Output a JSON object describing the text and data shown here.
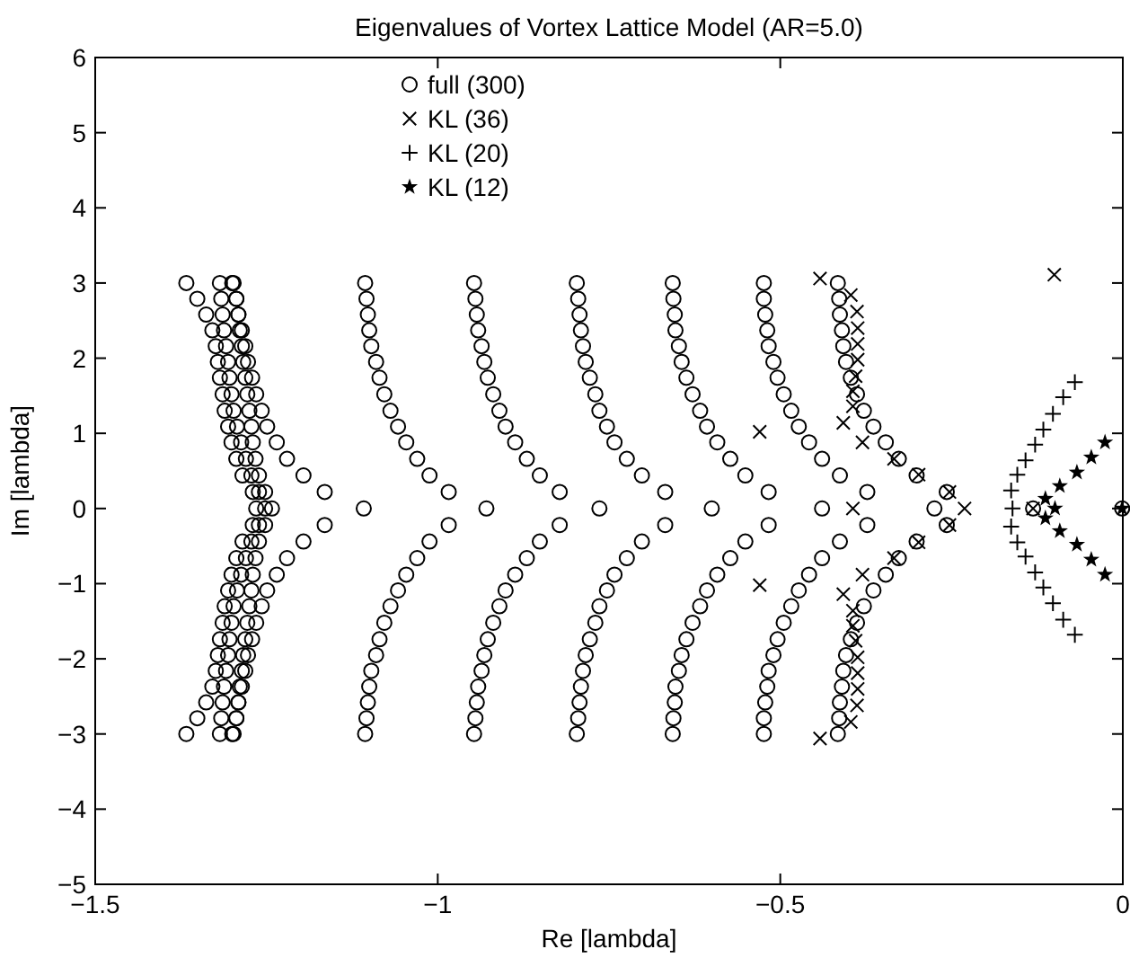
{
  "chart_data": {
    "type": "scatter",
    "title": "Eigenvalues of Vortex Lattice Model (AR=5.0)",
    "xlabel": "Re [lambda]",
    "ylabel": "Im [lambda]",
    "xlim": [
      -1.5,
      0
    ],
    "xticks": [
      -1.5,
      -1,
      -0.5,
      0
    ],
    "ylim": [
      -5,
      6
    ],
    "yticks": [
      -5,
      -4,
      -3,
      -2,
      -1,
      0,
      1,
      2,
      3,
      4,
      5,
      6
    ],
    "grid": false,
    "legend": "top",
    "series": [
      {
        "name": "full (300)",
        "color": "#000000",
        "marker": "circle",
        "x": [
          -1.367,
          -1.351,
          -1.338,
          -1.329,
          -1.324,
          -1.321,
          -1.318,
          -1.314,
          -1.311,
          -1.306,
          -1.301,
          -1.294,
          -1.285,
          -1.27,
          -1.367,
          -1.351,
          -1.338,
          -1.329,
          -1.324,
          -1.321,
          -1.318,
          -1.314,
          -1.311,
          -1.306,
          -1.301,
          -1.294,
          -1.285,
          -1.27,
          -1.318,
          -1.316,
          -1.314,
          -1.312,
          -1.309,
          -1.306,
          -1.304,
          -1.301,
          -1.298,
          -1.293,
          -1.287,
          -1.28,
          -1.272,
          -1.261,
          -1.318,
          -1.316,
          -1.314,
          -1.312,
          -1.309,
          -1.306,
          -1.304,
          -1.301,
          -1.298,
          -1.293,
          -1.287,
          -1.28,
          -1.272,
          -1.261,
          -1.298,
          -1.294,
          -1.291,
          -1.289,
          -1.286,
          -1.284,
          -1.281,
          -1.278,
          -1.275,
          -1.272,
          -1.27,
          -1.266,
          -1.261,
          -1.252,
          -1.298,
          -1.294,
          -1.291,
          -1.289,
          -1.286,
          -1.284,
          -1.281,
          -1.278,
          -1.275,
          -1.272,
          -1.27,
          -1.266,
          -1.261,
          -1.252,
          -1.3,
          -1.294,
          -1.291,
          -1.286,
          -1.281,
          -1.277,
          -1.271,
          -1.265,
          -1.257,
          -1.249,
          -1.235,
          -1.22,
          -1.196,
          -1.165,
          -1.3,
          -1.294,
          -1.291,
          -1.286,
          -1.281,
          -1.277,
          -1.271,
          -1.265,
          -1.257,
          -1.249,
          -1.235,
          -1.22,
          -1.196,
          -1.165,
          -1.265,
          -1.252,
          -1.242,
          -1.108,
          -1.106,
          -1.104,
          -1.102,
          -1.1,
          -1.097,
          -1.09,
          -1.085,
          -1.078,
          -1.069,
          -1.058,
          -1.046,
          -1.03,
          -1.012,
          -0.984,
          -1.106,
          -1.104,
          -1.102,
          -1.1,
          -1.097,
          -1.09,
          -1.085,
          -1.078,
          -1.069,
          -1.058,
          -1.046,
          -1.03,
          -1.012,
          -0.984,
          -0.929,
          -0.947,
          -0.945,
          -0.943,
          -0.941,
          -0.936,
          -0.932,
          -0.927,
          -0.919,
          -0.91,
          -0.901,
          -0.887,
          -0.87,
          -0.851,
          -0.822,
          -0.947,
          -0.945,
          -0.943,
          -0.941,
          -0.936,
          -0.932,
          -0.927,
          -0.919,
          -0.91,
          -0.901,
          -0.887,
          -0.87,
          -0.851,
          -0.822,
          -0.764,
          -0.797,
          -0.795,
          -0.793,
          -0.791,
          -0.788,
          -0.784,
          -0.778,
          -0.77,
          -0.764,
          -0.753,
          -0.742,
          -0.724,
          -0.702,
          -0.668,
          -0.797,
          -0.795,
          -0.793,
          -0.791,
          -0.788,
          -0.784,
          -0.778,
          -0.77,
          -0.764,
          -0.753,
          -0.742,
          -0.724,
          -0.702,
          -0.668,
          -0.6,
          -0.657,
          -0.656,
          -0.654,
          -0.653,
          -0.648,
          -0.644,
          -0.637,
          -0.628,
          -0.617,
          -0.607,
          -0.592,
          -0.573,
          -0.551,
          -0.517,
          -0.657,
          -0.656,
          -0.654,
          -0.653,
          -0.648,
          -0.644,
          -0.637,
          -0.628,
          -0.617,
          -0.607,
          -0.592,
          -0.573,
          -0.551,
          -0.517,
          -0.439,
          -0.524,
          -0.524,
          -0.522,
          -0.519,
          -0.517,
          -0.51,
          -0.504,
          -0.495,
          -0.484,
          -0.473,
          -0.458,
          -0.439,
          -0.413,
          -0.373,
          -0.524,
          -0.524,
          -0.522,
          -0.519,
          -0.517,
          -0.51,
          -0.504,
          -0.495,
          -0.484,
          -0.473,
          -0.458,
          -0.439,
          -0.413,
          -0.373,
          -0.275,
          -0.416,
          -0.414,
          -0.413,
          -0.41,
          -0.408,
          -0.404,
          -0.397,
          -0.388,
          -0.378,
          -0.364,
          -0.346,
          -0.327,
          -0.301,
          -0.257,
          -0.416,
          -0.414,
          -0.413,
          -0.41,
          -0.408,
          -0.404,
          -0.397,
          -0.388,
          -0.378,
          -0.364,
          -0.346,
          -0.327,
          -0.301,
          -0.257,
          -0.131,
          -0.001
        ],
        "values": [
          3.0,
          2.79,
          2.58,
          2.37,
          2.16,
          1.95,
          1.74,
          1.52,
          1.3,
          1.09,
          0.88,
          0.66,
          0.44,
          0.22,
          -3.0,
          -2.79,
          -2.58,
          -2.37,
          -2.16,
          -1.95,
          -1.74,
          -1.52,
          -1.3,
          -1.09,
          -0.88,
          -0.66,
          -0.44,
          -0.22,
          3.0,
          2.79,
          2.58,
          2.37,
          2.16,
          1.95,
          1.74,
          1.52,
          1.3,
          1.09,
          0.88,
          0.66,
          0.44,
          0.22,
          -3.0,
          -2.79,
          -2.58,
          -2.37,
          -2.16,
          -1.95,
          -1.74,
          -1.52,
          -1.3,
          -1.09,
          -0.88,
          -0.66,
          -0.44,
          -0.22,
          3.0,
          2.79,
          2.58,
          2.37,
          2.16,
          1.95,
          1.74,
          1.52,
          1.3,
          1.09,
          0.88,
          0.66,
          0.44,
          0.22,
          -3.0,
          -2.79,
          -2.58,
          -2.37,
          -2.16,
          -1.95,
          -1.74,
          -1.52,
          -1.3,
          -1.09,
          -0.88,
          -0.66,
          -0.44,
          -0.22,
          3.0,
          2.79,
          2.58,
          2.37,
          2.16,
          1.95,
          1.74,
          1.52,
          1.3,
          1.09,
          0.88,
          0.66,
          0.44,
          0.22,
          -3.0,
          -2.79,
          -2.58,
          -2.37,
          -2.16,
          -1.95,
          -1.74,
          -1.52,
          -1.3,
          -1.09,
          -0.88,
          -0.66,
          -0.44,
          -0.22,
          0,
          0,
          0,
          0,
          3.0,
          2.79,
          2.58,
          2.37,
          2.16,
          1.95,
          1.74,
          1.52,
          1.3,
          1.09,
          0.88,
          0.66,
          0.44,
          0.22,
          -3.0,
          -2.79,
          -2.58,
          -2.37,
          -2.16,
          -1.95,
          -1.74,
          -1.52,
          -1.3,
          -1.09,
          -0.88,
          -0.66,
          -0.44,
          -0.22,
          0,
          3.0,
          2.79,
          2.58,
          2.37,
          2.16,
          1.95,
          1.74,
          1.52,
          1.3,
          1.09,
          0.88,
          0.66,
          0.44,
          0.22,
          -3.0,
          -2.79,
          -2.58,
          -2.37,
          -2.16,
          -1.95,
          -1.74,
          -1.52,
          -1.3,
          -1.09,
          -0.88,
          -0.66,
          -0.44,
          -0.22,
          0,
          3.0,
          2.79,
          2.58,
          2.37,
          2.16,
          1.95,
          1.74,
          1.52,
          1.3,
          1.09,
          0.88,
          0.66,
          0.44,
          0.22,
          -3.0,
          -2.79,
          -2.58,
          -2.37,
          -2.16,
          -1.95,
          -1.74,
          -1.52,
          -1.3,
          -1.09,
          -0.88,
          -0.66,
          -0.44,
          -0.22,
          0,
          3.0,
          2.79,
          2.58,
          2.37,
          2.16,
          1.95,
          1.74,
          1.52,
          1.3,
          1.09,
          0.88,
          0.66,
          0.44,
          0.22,
          -3.0,
          -2.79,
          -2.58,
          -2.37,
          -2.16,
          -1.95,
          -1.74,
          -1.52,
          -1.3,
          -1.09,
          -0.88,
          -0.66,
          -0.44,
          -0.22,
          0,
          3.0,
          2.79,
          2.58,
          2.37,
          2.16,
          1.95,
          1.74,
          1.52,
          1.3,
          1.09,
          0.88,
          0.66,
          0.44,
          0.22,
          -3.0,
          -2.79,
          -2.58,
          -2.37,
          -2.16,
          -1.95,
          -1.74,
          -1.52,
          -1.3,
          -1.09,
          -0.88,
          -0.66,
          -0.44,
          -0.22,
          0,
          3.0,
          2.79,
          2.58,
          2.37,
          2.16,
          1.95,
          1.74,
          1.52,
          1.3,
          1.09,
          0.88,
          0.66,
          0.44,
          0.22,
          -3.0,
          -2.79,
          -2.58,
          -2.37,
          -2.16,
          -1.95,
          -1.74,
          -1.52,
          -1.3,
          -1.09,
          -0.88,
          -0.66,
          -0.44,
          -0.22,
          0,
          0
        ]
      },
      {
        "name": "KL (36)",
        "color": "#000000",
        "marker": "x",
        "x": [
          -0.442,
          -0.397,
          -0.388,
          -0.387,
          -0.387,
          -0.387,
          -0.39,
          -0.394,
          -0.394,
          -0.408,
          -0.38,
          -0.53,
          -0.334,
          -0.298,
          -0.253,
          -0.1,
          -0.442,
          -0.397,
          -0.388,
          -0.387,
          -0.387,
          -0.387,
          -0.39,
          -0.394,
          -0.394,
          -0.408,
          -0.38,
          -0.53,
          -0.334,
          -0.298,
          -0.253,
          -0.394,
          -0.231,
          -0.131
        ],
        "values": [
          3.06,
          2.84,
          2.62,
          2.4,
          2.19,
          1.98,
          1.76,
          1.56,
          1.36,
          1.14,
          0.88,
          1.02,
          0.66,
          0.45,
          0.22,
          3.11,
          -3.06,
          -2.84,
          -2.62,
          -2.4,
          -2.19,
          -1.98,
          -1.76,
          -1.56,
          -1.36,
          -1.14,
          -0.88,
          -1.02,
          -0.66,
          -0.45,
          -0.22,
          0,
          0,
          0
        ]
      },
      {
        "name": "KL (20)",
        "color": "#000000",
        "marker": "cross",
        "x": [
          -0.07,
          -0.087,
          -0.102,
          -0.116,
          -0.128,
          -0.142,
          -0.154,
          -0.163,
          -0.07,
          -0.087,
          -0.102,
          -0.116,
          -0.128,
          -0.142,
          -0.154,
          -0.163,
          -0.161
        ],
        "values": [
          1.68,
          1.48,
          1.26,
          1.05,
          0.85,
          0.64,
          0.45,
          0.24,
          -1.68,
          -1.48,
          -1.26,
          -1.05,
          -0.85,
          -0.64,
          -0.45,
          -0.24,
          0
        ]
      },
      {
        "name": "KL (12)",
        "color": "#000000",
        "marker": "star",
        "x": [
          -0.026,
          -0.046,
          -0.067,
          -0.092,
          -0.113,
          -0.026,
          -0.046,
          -0.067,
          -0.092,
          -0.113,
          -0.099,
          -0.001
        ],
        "values": [
          0.88,
          0.68,
          0.48,
          0.3,
          0.13,
          -0.88,
          -0.68,
          -0.48,
          -0.3,
          -0.13,
          0,
          0
        ]
      }
    ]
  }
}
